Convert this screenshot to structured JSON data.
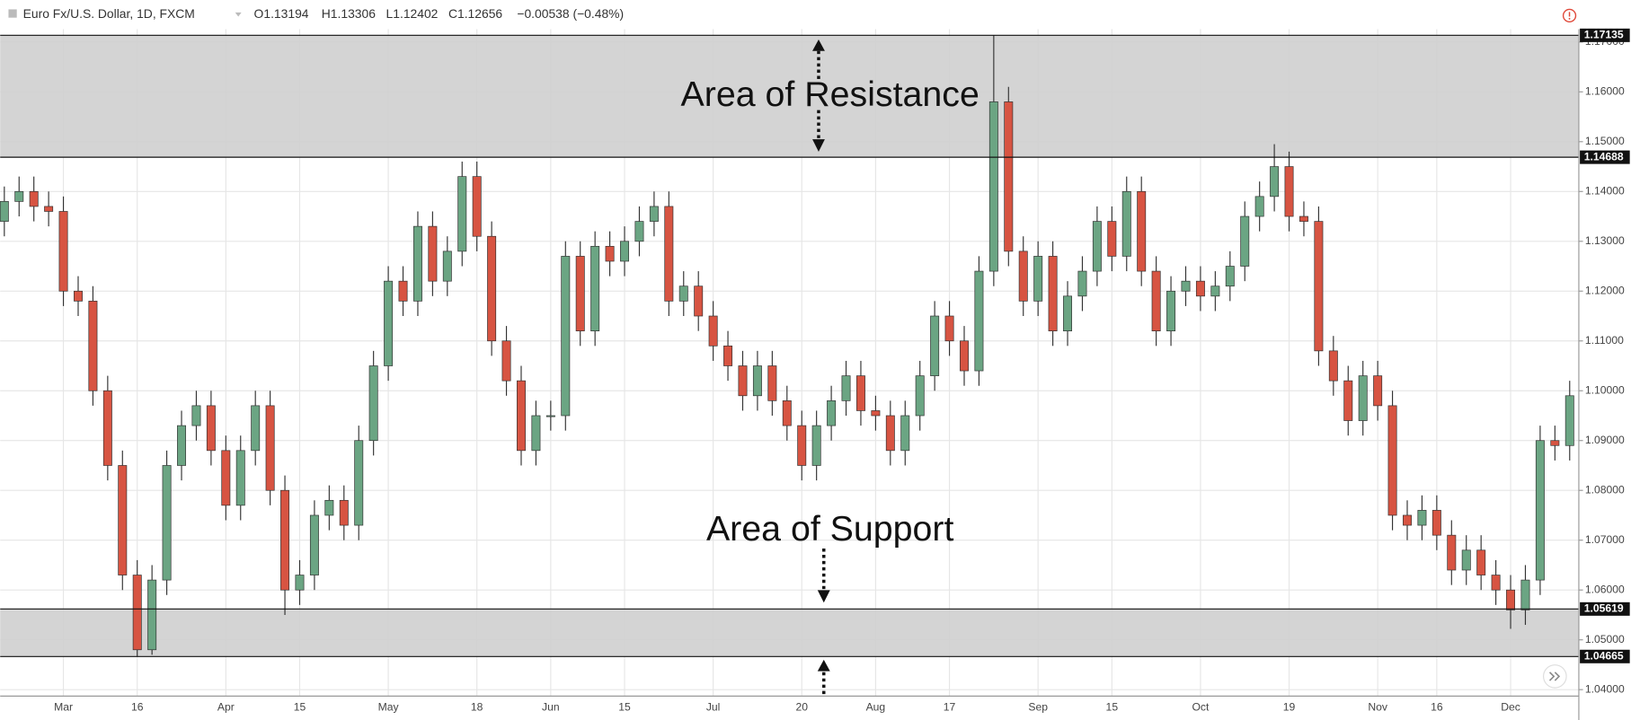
{
  "chart_data": {
    "type": "candlestick",
    "header": {
      "symbol": "Euro Fx/U.S. Dollar, 1D, FXCM",
      "open": "O1.13194",
      "high": "H1.13306",
      "low": "L1.12402",
      "close": "C1.12656",
      "change": "−0.00538 (−0.48%)"
    },
    "categories": [
      null,
      null,
      null,
      null,
      "Mar",
      null,
      null,
      null,
      null,
      "16",
      null,
      null,
      null,
      null,
      null,
      "Apr",
      null,
      null,
      null,
      null,
      "15",
      null,
      null,
      null,
      null,
      null,
      "May",
      null,
      null,
      null,
      null,
      null,
      "18",
      null,
      null,
      null,
      null,
      "Jun",
      null,
      null,
      null,
      null,
      "15",
      null,
      null,
      null,
      null,
      null,
      "Jul",
      null,
      null,
      null,
      null,
      null,
      "20",
      null,
      null,
      null,
      null,
      "Aug",
      null,
      null,
      null,
      null,
      "17",
      null,
      null,
      null,
      null,
      null,
      "Sep",
      null,
      null,
      null,
      null,
      "15",
      null,
      null,
      null,
      null,
      null,
      "Oct",
      null,
      null,
      null,
      null,
      null,
      "19",
      null,
      null,
      null,
      null,
      null,
      "Nov",
      null,
      null,
      null,
      "16",
      null,
      null,
      null,
      null,
      "Dec",
      null,
      null,
      null,
      null
    ],
    "open": [
      1.134,
      1.138,
      1.14,
      1.137,
      1.136,
      1.12,
      1.118,
      1.1,
      1.085,
      1.063,
      1.048,
      1.062,
      1.085,
      1.093,
      1.097,
      1.088,
      1.077,
      1.088,
      1.097,
      1.08,
      1.06,
      1.063,
      1.075,
      1.078,
      1.073,
      1.09,
      1.105,
      1.122,
      1.118,
      1.133,
      1.122,
      1.128,
      1.143,
      1.131,
      1.11,
      1.102,
      1.088,
      1.095,
      1.095,
      1.127,
      1.112,
      1.129,
      1.126,
      1.13,
      1.134,
      1.137,
      1.118,
      1.121,
      1.115,
      1.109,
      1.105,
      1.099,
      1.105,
      1.098,
      1.093,
      1.085,
      1.093,
      1.098,
      1.103,
      1.096,
      1.095,
      1.088,
      1.095,
      1.103,
      1.115,
      1.11,
      1.104,
      1.124,
      1.158,
      1.128,
      1.118,
      1.127,
      1.112,
      1.119,
      1.124,
      1.134,
      1.127,
      1.14,
      1.124,
      1.112,
      1.12,
      1.122,
      1.119,
      1.121,
      1.125,
      1.135,
      1.139,
      1.145,
      1.135,
      1.134,
      1.108,
      1.102,
      1.094,
      1.103,
      1.097,
      1.075,
      1.073,
      1.076,
      1.071,
      1.064,
      1.068,
      1.063,
      1.06,
      1.056,
      1.062,
      1.09,
      1.089
    ],
    "high": [
      1.141,
      1.143,
      1.143,
      1.14,
      1.139,
      1.123,
      1.121,
      1.103,
      1.088,
      1.066,
      1.065,
      1.088,
      1.096,
      1.1,
      1.1,
      1.091,
      1.091,
      1.1,
      1.1,
      1.083,
      1.066,
      1.078,
      1.081,
      1.081,
      1.093,
      1.108,
      1.125,
      1.125,
      1.136,
      1.136,
      1.131,
      1.146,
      1.146,
      1.134,
      1.113,
      1.105,
      1.098,
      1.098,
      1.13,
      1.13,
      1.132,
      1.132,
      1.133,
      1.137,
      1.14,
      1.14,
      1.124,
      1.124,
      1.118,
      1.112,
      1.108,
      1.108,
      1.108,
      1.101,
      1.096,
      1.096,
      1.101,
      1.106,
      1.106,
      1.099,
      1.098,
      1.098,
      1.106,
      1.118,
      1.118,
      1.113,
      1.127,
      1.17135,
      1.161,
      1.131,
      1.13,
      1.13,
      1.122,
      1.127,
      1.137,
      1.137,
      1.143,
      1.143,
      1.127,
      1.123,
      1.125,
      1.125,
      1.124,
      1.128,
      1.138,
      1.142,
      1.1495,
      1.148,
      1.138,
      1.137,
      1.111,
      1.105,
      1.106,
      1.106,
      1.1,
      1.078,
      1.079,
      1.079,
      1.074,
      1.071,
      1.071,
      1.066,
      1.063,
      1.065,
      1.093,
      1.093,
      1.102
    ],
    "low": [
      1.131,
      1.135,
      1.134,
      1.133,
      1.117,
      1.115,
      1.097,
      1.082,
      1.06,
      1.04665,
      1.047,
      1.059,
      1.082,
      1.09,
      1.085,
      1.074,
      1.074,
      1.085,
      1.077,
      1.055,
      1.057,
      1.06,
      1.072,
      1.07,
      1.07,
      1.087,
      1.102,
      1.115,
      1.115,
      1.119,
      1.119,
      1.125,
      1.128,
      1.107,
      1.099,
      1.085,
      1.085,
      1.092,
      1.092,
      1.109,
      1.109,
      1.123,
      1.123,
      1.127,
      1.131,
      1.115,
      1.115,
      1.112,
      1.106,
      1.102,
      1.096,
      1.096,
      1.095,
      1.09,
      1.082,
      1.082,
      1.09,
      1.095,
      1.093,
      1.092,
      1.085,
      1.085,
      1.092,
      1.1,
      1.107,
      1.101,
      1.101,
      1.121,
      1.125,
      1.115,
      1.115,
      1.109,
      1.109,
      1.116,
      1.121,
      1.124,
      1.124,
      1.121,
      1.109,
      1.109,
      1.117,
      1.116,
      1.116,
      1.118,
      1.122,
      1.132,
      1.136,
      1.132,
      1.131,
      1.105,
      1.099,
      1.091,
      1.091,
      1.094,
      1.072,
      1.07,
      1.07,
      1.068,
      1.061,
      1.061,
      1.06,
      1.057,
      1.0522,
      1.053,
      1.059,
      1.086,
      1.086
    ],
    "close": [
      1.138,
      1.14,
      1.137,
      1.136,
      1.12,
      1.118,
      1.1,
      1.085,
      1.063,
      1.048,
      1.062,
      1.085,
      1.093,
      1.097,
      1.088,
      1.077,
      1.088,
      1.097,
      1.08,
      1.06,
      1.063,
      1.075,
      1.078,
      1.073,
      1.09,
      1.105,
      1.122,
      1.118,
      1.133,
      1.122,
      1.128,
      1.143,
      1.131,
      1.11,
      1.102,
      1.088,
      1.095,
      1.095,
      1.127,
      1.112,
      1.129,
      1.126,
      1.13,
      1.134,
      1.137,
      1.118,
      1.121,
      1.115,
      1.109,
      1.105,
      1.099,
      1.105,
      1.098,
      1.093,
      1.085,
      1.093,
      1.098,
      1.103,
      1.096,
      1.095,
      1.088,
      1.095,
      1.103,
      1.115,
      1.11,
      1.104,
      1.124,
      1.158,
      1.128,
      1.118,
      1.127,
      1.112,
      1.119,
      1.124,
      1.134,
      1.127,
      1.14,
      1.124,
      1.112,
      1.12,
      1.122,
      1.119,
      1.121,
      1.125,
      1.135,
      1.139,
      1.145,
      1.135,
      1.134,
      1.108,
      1.102,
      1.094,
      1.103,
      1.097,
      1.075,
      1.073,
      1.076,
      1.071,
      1.064,
      1.068,
      1.063,
      1.06,
      1.056,
      1.062,
      1.09,
      1.089,
      1.099
    ],
    "up_color": "#6ba583",
    "down_color": "#d75442",
    "ylim": [
      1.0387,
      1.1726
    ],
    "yticks": [
      {
        "value": 1.04,
        "label": "1.04000"
      },
      {
        "value": 1.05,
        "label": "1.05000"
      },
      {
        "value": 1.06,
        "label": "1.06000"
      },
      {
        "value": 1.07,
        "label": "1.07000"
      },
      {
        "value": 1.08,
        "label": "1.08000"
      },
      {
        "value": 1.09,
        "label": "1.09000"
      },
      {
        "value": 1.1,
        "label": "1.10000"
      },
      {
        "value": 1.11,
        "label": "1.11000"
      },
      {
        "value": 1.12,
        "label": "1.12000"
      },
      {
        "value": 1.13,
        "label": "1.13000"
      },
      {
        "value": 1.14,
        "label": "1.14000"
      },
      {
        "value": 1.15,
        "label": "1.15000"
      },
      {
        "value": 1.16,
        "label": "1.16000"
      },
      {
        "value": 1.17,
        "label": "1.17000"
      }
    ],
    "grid": true,
    "zones": [
      {
        "low": 1.14688,
        "high": 1.17135,
        "label": "Area of Resistance"
      },
      {
        "low": 1.04665,
        "high": 1.05619,
        "label": "Area of Support"
      }
    ]
  }
}
